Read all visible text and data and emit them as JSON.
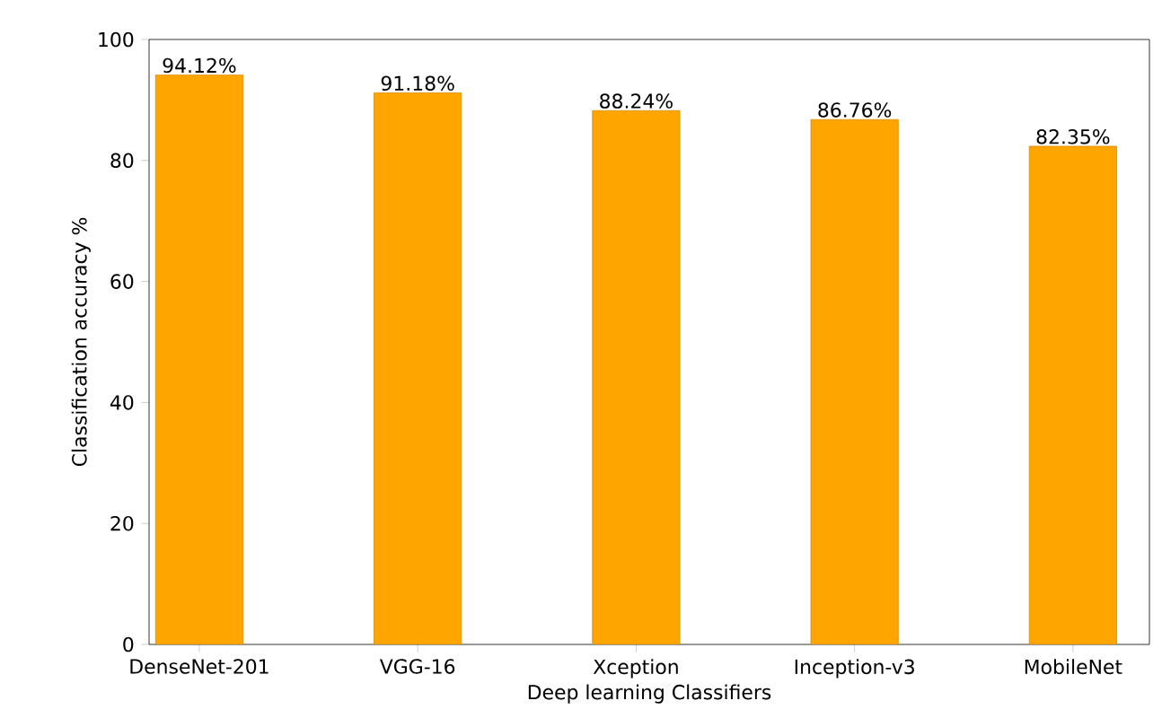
{
  "chart_data": {
    "type": "bar",
    "xlabel": "Deep learning Classifiers",
    "ylabel": "Classification accuracy %",
    "categories": [
      "DenseNet-201",
      "VGG-16",
      "Xception",
      "Inception-v3",
      "MobileNet"
    ],
    "values": [
      94.12,
      91.18,
      88.24,
      86.76,
      82.35
    ],
    "value_labels": [
      "94.12%",
      "91.18%",
      "88.24%",
      "86.76%",
      "82.35%"
    ],
    "color": "#ffa500",
    "ylim": [
      0,
      100
    ],
    "yticks": [
      0,
      20,
      40,
      60,
      80,
      100
    ],
    "grid": false
  }
}
